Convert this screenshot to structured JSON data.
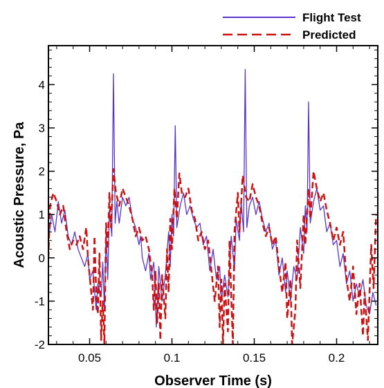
{
  "chart_data": {
    "type": "line",
    "xlabel": "Observer Time (s)",
    "ylabel": "Acoustic Pressure, Pa",
    "xlim": [
      0.025,
      0.225
    ],
    "ylim": [
      -2,
      4.9
    ],
    "xticks": [
      0.05,
      0.1,
      0.15,
      0.2
    ],
    "xtick_labels": [
      "0.05",
      "0.1",
      "0.15",
      "0.2"
    ],
    "yticks": [
      -2,
      -1,
      0,
      1,
      2,
      3,
      4
    ],
    "ytick_labels": [
      "-2",
      "-1",
      "0",
      "1",
      "2",
      "3",
      "4"
    ],
    "grid": false,
    "legend_position": "top-right",
    "series": [
      {
        "name": "Flight Test",
        "color": "#5533cc",
        "style": "solid",
        "points": [
          [
            0.025,
            0.4
          ],
          [
            0.027,
            1.0
          ],
          [
            0.029,
            0.6
          ],
          [
            0.031,
            1.3
          ],
          [
            0.033,
            0.8
          ],
          [
            0.035,
            1.1
          ],
          [
            0.037,
            0.5
          ],
          [
            0.039,
            0.3
          ],
          [
            0.041,
            0.6
          ],
          [
            0.043,
            0.2
          ],
          [
            0.045,
            0.0
          ],
          [
            0.047,
            -0.2
          ],
          [
            0.049,
            0.1
          ],
          [
            0.05,
            -0.5
          ],
          [
            0.052,
            -0.3
          ],
          [
            0.054,
            -1.2
          ],
          [
            0.055,
            -0.6
          ],
          [
            0.057,
            -0.9
          ],
          [
            0.058,
            -0.1
          ],
          [
            0.059,
            -1.2
          ],
          [
            0.06,
            0.6
          ],
          [
            0.061,
            -0.5
          ],
          [
            0.062,
            1.1
          ],
          [
            0.0635,
            0.5
          ],
          [
            0.0645,
            4.25
          ],
          [
            0.0655,
            0.8
          ],
          [
            0.0665,
            1.3
          ],
          [
            0.068,
            0.8
          ],
          [
            0.07,
            1.4
          ],
          [
            0.072,
            1.2
          ],
          [
            0.074,
            1.4
          ],
          [
            0.076,
            0.9
          ],
          [
            0.078,
            0.7
          ],
          [
            0.08,
            0.3
          ],
          [
            0.081,
            0.5
          ],
          [
            0.082,
            0.0
          ],
          [
            0.084,
            -0.3
          ],
          [
            0.086,
            0.1
          ],
          [
            0.087,
            -0.5
          ],
          [
            0.089,
            -0.1
          ],
          [
            0.0905,
            -1.6
          ],
          [
            0.092,
            -0.2
          ],
          [
            0.094,
            -1.0
          ],
          [
            0.096,
            -0.4
          ],
          [
            0.098,
            0.6
          ],
          [
            0.099,
            -0.2
          ],
          [
            0.1,
            1.0
          ],
          [
            0.101,
            0.5
          ],
          [
            0.102,
            3.05
          ],
          [
            0.103,
            0.7
          ],
          [
            0.105,
            1.2
          ],
          [
            0.107,
            1.5
          ],
          [
            0.109,
            1.0
          ],
          [
            0.111,
            1.2
          ],
          [
            0.113,
            0.9
          ],
          [
            0.115,
            0.7
          ],
          [
            0.117,
            0.8
          ],
          [
            0.119,
            0.3
          ],
          [
            0.121,
            0.5
          ],
          [
            0.123,
            -0.3
          ],
          [
            0.125,
            0.2
          ],
          [
            0.127,
            -0.5
          ],
          [
            0.129,
            -0.2
          ],
          [
            0.13,
            -1.0
          ],
          [
            0.132,
            -0.4
          ],
          [
            0.134,
            -0.9
          ],
          [
            0.136,
            0.5
          ],
          [
            0.138,
            -0.3
          ],
          [
            0.139,
            0.9
          ],
          [
            0.141,
            0.4
          ],
          [
            0.142,
            1.3
          ],
          [
            0.1435,
            0.6
          ],
          [
            0.1445,
            4.35
          ],
          [
            0.1455,
            0.7
          ],
          [
            0.147,
            1.2
          ],
          [
            0.149,
            1.4
          ],
          [
            0.151,
            1.0
          ],
          [
            0.153,
            1.3
          ],
          [
            0.155,
            0.9
          ],
          [
            0.157,
            0.6
          ],
          [
            0.159,
            0.8
          ],
          [
            0.161,
            0.2
          ],
          [
            0.163,
            0.4
          ],
          [
            0.165,
            -0.4
          ],
          [
            0.167,
            0.0
          ],
          [
            0.169,
            -0.8
          ],
          [
            0.17,
            -0.3
          ],
          [
            0.172,
            -1.0
          ],
          [
            0.174,
            -0.2
          ],
          [
            0.176,
            -0.5
          ],
          [
            0.178,
            0.7
          ],
          [
            0.18,
            0.1
          ],
          [
            0.181,
            1.2
          ],
          [
            0.182,
            0.6
          ],
          [
            0.183,
            3.6
          ],
          [
            0.184,
            0.8
          ],
          [
            0.186,
            1.3
          ],
          [
            0.188,
            1.6
          ],
          [
            0.19,
            1.1
          ],
          [
            0.192,
            1.2
          ],
          [
            0.194,
            0.6
          ],
          [
            0.196,
            0.8
          ],
          [
            0.198,
            0.3
          ],
          [
            0.2,
            0.4
          ],
          [
            0.202,
            -0.2
          ],
          [
            0.204,
            0.1
          ],
          [
            0.206,
            -0.6
          ],
          [
            0.208,
            -0.3
          ],
          [
            0.21,
            -1.0
          ],
          [
            0.212,
            -0.6
          ],
          [
            0.214,
            -0.9
          ],
          [
            0.216,
            -0.5
          ],
          [
            0.218,
            -1.1
          ],
          [
            0.22,
            -1.3
          ],
          [
            0.222,
            -0.8
          ],
          [
            0.224,
            -1.1
          ]
        ]
      },
      {
        "name": "Predicted",
        "color": "#cc1111",
        "style": "dashed",
        "points": [
          [
            0.025,
            0.0
          ],
          [
            0.026,
            1.2
          ],
          [
            0.028,
            1.5
          ],
          [
            0.03,
            1.3
          ],
          [
            0.032,
            1.0
          ],
          [
            0.034,
            1.2
          ],
          [
            0.036,
            0.6
          ],
          [
            0.038,
            0.2
          ],
          [
            0.04,
            0.4
          ],
          [
            0.042,
            0.3
          ],
          [
            0.044,
            0.5
          ],
          [
            0.046,
            0.2
          ],
          [
            0.048,
            0.7
          ],
          [
            0.049,
            0.0
          ],
          [
            0.05,
            -0.4
          ],
          [
            0.052,
            -1.2
          ],
          [
            0.053,
            0.5
          ],
          [
            0.054,
            -0.8
          ],
          [
            0.055,
            -1.3
          ],
          [
            0.056,
            0.1
          ],
          [
            0.057,
            -1.9
          ],
          [
            0.058,
            -1.0
          ],
          [
            0.059,
            -2.0
          ],
          [
            0.06,
            0.8
          ],
          [
            0.061,
            0.2
          ],
          [
            0.062,
            1.5
          ],
          [
            0.063,
            0.7
          ],
          [
            0.0645,
            2.05
          ],
          [
            0.066,
            1.5
          ],
          [
            0.068,
            1.2
          ],
          [
            0.07,
            1.6
          ],
          [
            0.072,
            1.4
          ],
          [
            0.074,
            1.2
          ],
          [
            0.076,
            0.9
          ],
          [
            0.078,
            0.5
          ],
          [
            0.08,
            0.7
          ],
          [
            0.082,
            0.4
          ],
          [
            0.084,
            0.5
          ],
          [
            0.086,
            0.2
          ],
          [
            0.088,
            -0.4
          ],
          [
            0.089,
            -1.2
          ],
          [
            0.09,
            -0.3
          ],
          [
            0.091,
            -1.5
          ],
          [
            0.092,
            -0.6
          ],
          [
            0.093,
            -1.9
          ],
          [
            0.094,
            -0.4
          ],
          [
            0.096,
            -1.4
          ],
          [
            0.097,
            0.2
          ],
          [
            0.098,
            -0.8
          ],
          [
            0.099,
            0.9
          ],
          [
            0.1,
            0.2
          ],
          [
            0.1015,
            1.6
          ],
          [
            0.103,
            0.9
          ],
          [
            0.1045,
            1.95
          ],
          [
            0.106,
            1.5
          ],
          [
            0.108,
            1.4
          ],
          [
            0.11,
            1.6
          ],
          [
            0.112,
            1.1
          ],
          [
            0.114,
            0.9
          ],
          [
            0.116,
            0.4
          ],
          [
            0.118,
            0.6
          ],
          [
            0.12,
            0.2
          ],
          [
            0.122,
            0.4
          ],
          [
            0.124,
            -0.3
          ],
          [
            0.126,
            -1.0
          ],
          [
            0.128,
            -0.2
          ],
          [
            0.129,
            -1.6
          ],
          [
            0.13,
            -0.5
          ],
          [
            0.131,
            -2.0
          ],
          [
            0.132,
            -0.6
          ],
          [
            0.134,
            -1.7
          ],
          [
            0.135,
            0.4
          ],
          [
            0.136,
            -0.9
          ],
          [
            0.137,
            -2.0
          ],
          [
            0.138,
            0.6
          ],
          [
            0.14,
            1.5
          ],
          [
            0.141,
            0.6
          ],
          [
            0.143,
            1.9
          ],
          [
            0.145,
            1.4
          ],
          [
            0.147,
            1.3
          ],
          [
            0.149,
            1.7
          ],
          [
            0.151,
            1.4
          ],
          [
            0.153,
            1.2
          ],
          [
            0.155,
            0.8
          ],
          [
            0.157,
            0.5
          ],
          [
            0.159,
            0.7
          ],
          [
            0.161,
            0.3
          ],
          [
            0.163,
            0.5
          ],
          [
            0.165,
            -0.2
          ],
          [
            0.167,
            -0.8
          ],
          [
            0.169,
            -0.1
          ],
          [
            0.17,
            -1.4
          ],
          [
            0.172,
            -0.5
          ],
          [
            0.173,
            -2.0
          ],
          [
            0.175,
            -1.2
          ],
          [
            0.176,
            0.4
          ],
          [
            0.178,
            -0.7
          ],
          [
            0.18,
            1.0
          ],
          [
            0.181,
            0.3
          ],
          [
            0.183,
            1.6
          ],
          [
            0.184,
            0.9
          ],
          [
            0.186,
            2.0
          ],
          [
            0.188,
            1.6
          ],
          [
            0.19,
            1.3
          ],
          [
            0.192,
            1.5
          ],
          [
            0.194,
            1.1
          ],
          [
            0.196,
            0.8
          ],
          [
            0.198,
            0.4
          ],
          [
            0.2,
            0.7
          ],
          [
            0.202,
            0.3
          ],
          [
            0.204,
            0.6
          ],
          [
            0.206,
            -0.5
          ],
          [
            0.208,
            -1.0
          ],
          [
            0.21,
            -0.2
          ],
          [
            0.212,
            -1.3
          ],
          [
            0.214,
            -0.6
          ],
          [
            0.216,
            -1.8
          ],
          [
            0.217,
            -0.8
          ],
          [
            0.219,
            -1.9
          ],
          [
            0.221,
            0.3
          ],
          [
            0.2225,
            -0.7
          ],
          [
            0.224,
            1.0
          ]
        ]
      }
    ]
  }
}
